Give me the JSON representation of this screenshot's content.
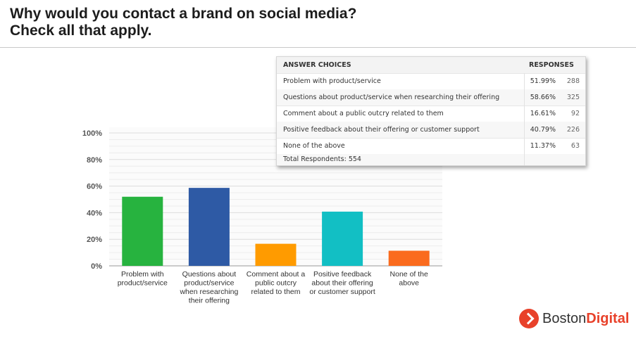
{
  "header": {
    "title_line1": "Why would you contact a brand on social media?",
    "title_line2": "Check all that apply."
  },
  "table": {
    "col_header_choices": "ANSWER CHOICES",
    "col_header_responses": "RESPONSES",
    "rows": [
      {
        "choice": "Problem with product/service",
        "percent": "51.99%",
        "count": "288"
      },
      {
        "choice": "Questions about product/service when researching their offering",
        "percent": "58.66%",
        "count": "325"
      },
      {
        "choice": "Comment about a public outcry related to them",
        "percent": "16.61%",
        "count": "92"
      },
      {
        "choice": "Positive feedback about their offering or customer support",
        "percent": "40.79%",
        "count": "226"
      },
      {
        "choice": "None of the above",
        "percent": "11.37%",
        "count": "63"
      }
    ],
    "total_label": "Total Respondents: 554"
  },
  "chart_data": {
    "type": "bar",
    "categories": [
      [
        "Problem with",
        "product/service"
      ],
      [
        "Questions about",
        "product/service",
        "when researching",
        "their offering"
      ],
      [
        "Comment about a",
        "public outcry",
        "related to them"
      ],
      [
        "Positive feedback",
        "about their offering",
        "or customer support"
      ],
      [
        "None of the",
        "above"
      ]
    ],
    "values": [
      51.99,
      58.66,
      16.61,
      40.79,
      11.37
    ],
    "colors": [
      "#27b33f",
      "#2e5aa5",
      "#ff9b00",
      "#12bfc4",
      "#fa6b1e"
    ],
    "ylim": [
      0,
      100
    ],
    "yticks": [
      0,
      20,
      40,
      60,
      80,
      100
    ],
    "ytick_labels": [
      "0%",
      "20%",
      "40%",
      "60%",
      "80%",
      "100%"
    ],
    "grid": true,
    "title": "",
    "xlabel": "",
    "ylabel": ""
  },
  "logo": {
    "word1": "Boston",
    "word2": "Digital",
    "accent_color": "#e8412a"
  }
}
